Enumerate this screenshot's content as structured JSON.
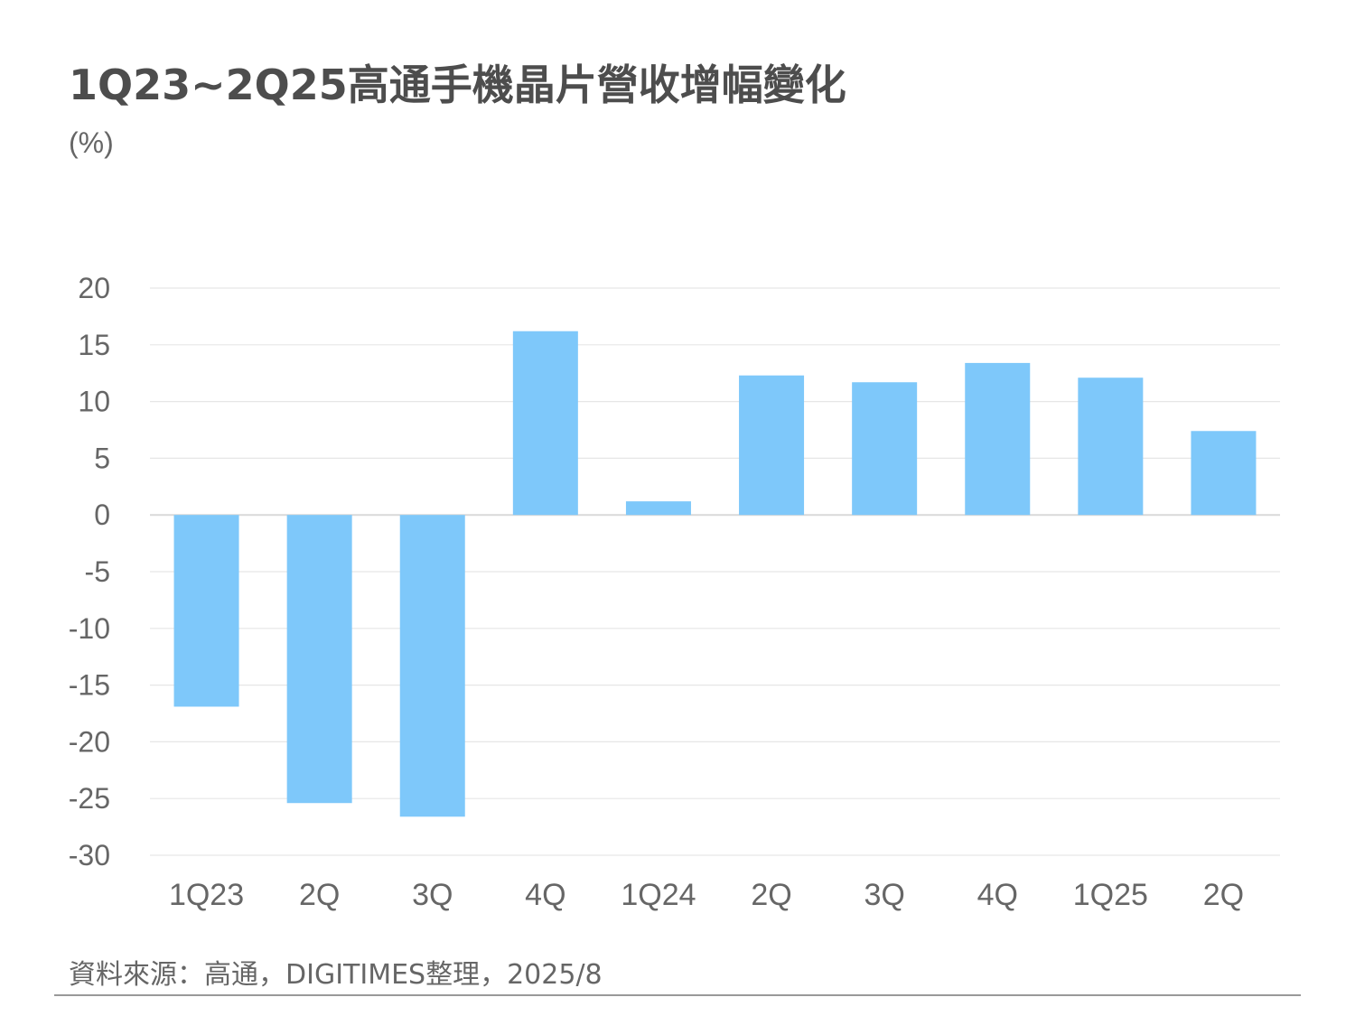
{
  "title": "1Q23~2Q25高通手機晶片營收增幅變化",
  "source": "資料來源：高通，DIGITIMES整理，2025/8",
  "colors": {
    "bar": "#7ec8fa",
    "grid": "#e6e6e6",
    "zero_line": "#d9d9d9",
    "text": "#666666"
  },
  "chart_data": {
    "type": "bar",
    "title": "1Q23~2Q25高通手機晶片營收增幅變化",
    "ylabel": "(%)",
    "xlabel": "",
    "categories": [
      "1Q23",
      "2Q",
      "3Q",
      "4Q",
      "1Q24",
      "2Q",
      "3Q",
      "4Q",
      "1Q25",
      "2Q"
    ],
    "series": [
      {
        "values": [
          -16.9,
          -25.4,
          -26.6,
          16.2,
          1.2,
          12.3,
          11.7,
          13.4,
          12.1,
          7.4
        ]
      }
    ],
    "ylim": [
      -30,
      20
    ],
    "yticks": [
      "20",
      "15",
      "10",
      "5",
      "0",
      "-5",
      "-10",
      "-15",
      "-20",
      "-25",
      "-30"
    ],
    "grid": true,
    "legend": "none"
  }
}
